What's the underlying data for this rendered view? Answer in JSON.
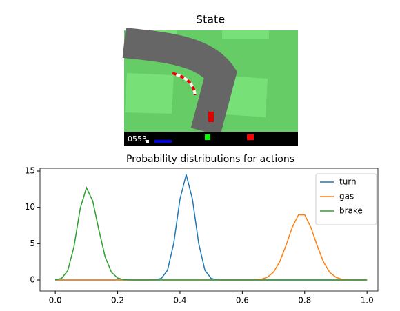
{
  "chart_data": [
    {
      "type": "image",
      "title": "State",
      "hud_text": "0553"
    },
    {
      "type": "line",
      "title": "Probability distributions for actions",
      "x": [
        0,
        0.02,
        0.04,
        0.06,
        0.08,
        0.1,
        0.12,
        0.14,
        0.16,
        0.18,
        0.2,
        0.22,
        0.24,
        0.26,
        0.28,
        0.3,
        0.32,
        0.34,
        0.36,
        0.38,
        0.4,
        0.42,
        0.44,
        0.46,
        0.48,
        0.5,
        0.52,
        0.54,
        0.56,
        0.58,
        0.6,
        0.62,
        0.64,
        0.66,
        0.68,
        0.7,
        0.72,
        0.74,
        0.76,
        0.78,
        0.8,
        0.82,
        0.84,
        0.86,
        0.88,
        0.9,
        0.92,
        0.94,
        0.96,
        0.98,
        1
      ],
      "series": [
        {
          "name": "turn",
          "color": "#1f77b4",
          "values": [
            0,
            0,
            0,
            0,
            0,
            0,
            0,
            0,
            0,
            0,
            0,
            0,
            0,
            0,
            0,
            0,
            0.02,
            0.21,
            1.34,
            5.03,
            11.13,
            14.5,
            11.13,
            5.03,
            1.34,
            0.21,
            0.02,
            0,
            0,
            0,
            0,
            0,
            0,
            0,
            0,
            0,
            0,
            0,
            0,
            0,
            0,
            0,
            0,
            0,
            0,
            0,
            0,
            0,
            0,
            0,
            0
          ]
        },
        {
          "name": "gas",
          "color": "#ff7f0e",
          "values": [
            0,
            0,
            0,
            0,
            0,
            0,
            0,
            0,
            0,
            0,
            0,
            0,
            0,
            0,
            0,
            0,
            0,
            0,
            0,
            0,
            0,
            0,
            0,
            0,
            0,
            0,
            0,
            0,
            0,
            0,
            0,
            0,
            0.02,
            0.1,
            0.37,
            1.07,
            2.51,
            4.74,
            7.24,
            8.96,
            8.96,
            7.24,
            4.74,
            2.51,
            1.07,
            0.37,
            0.1,
            0.02,
            0,
            0,
            0
          ]
        },
        {
          "name": "brake",
          "color": "#2ca02c",
          "values": [
            0.02,
            0.21,
            1.28,
            4.58,
            9.84,
            12.7,
            10.89,
            6.85,
            3.17,
            1.08,
            0.27,
            0.05,
            0.01,
            0,
            0,
            0,
            0,
            0,
            0,
            0,
            0,
            0,
            0,
            0,
            0,
            0,
            0,
            0,
            0,
            0,
            0,
            0,
            0,
            0,
            0,
            0,
            0,
            0,
            0,
            0,
            0,
            0,
            0,
            0,
            0,
            0,
            0,
            0,
            0,
            0,
            0
          ]
        }
      ],
      "xlim": [
        -0.049,
        1.035
      ],
      "ylim": [
        -1.52,
        15.38
      ],
      "xticks": [
        {
          "value": 0,
          "label": "0.0"
        },
        {
          "value": 0.2,
          "label": "0.2"
        },
        {
          "value": 0.4,
          "label": "0.4"
        },
        {
          "value": 0.6,
          "label": "0.6"
        },
        {
          "value": 0.8,
          "label": "0.8"
        },
        {
          "value": 1,
          "label": "1.0"
        }
      ],
      "yticks": [
        0,
        5,
        10,
        15
      ],
      "legend": "upper right"
    }
  ]
}
